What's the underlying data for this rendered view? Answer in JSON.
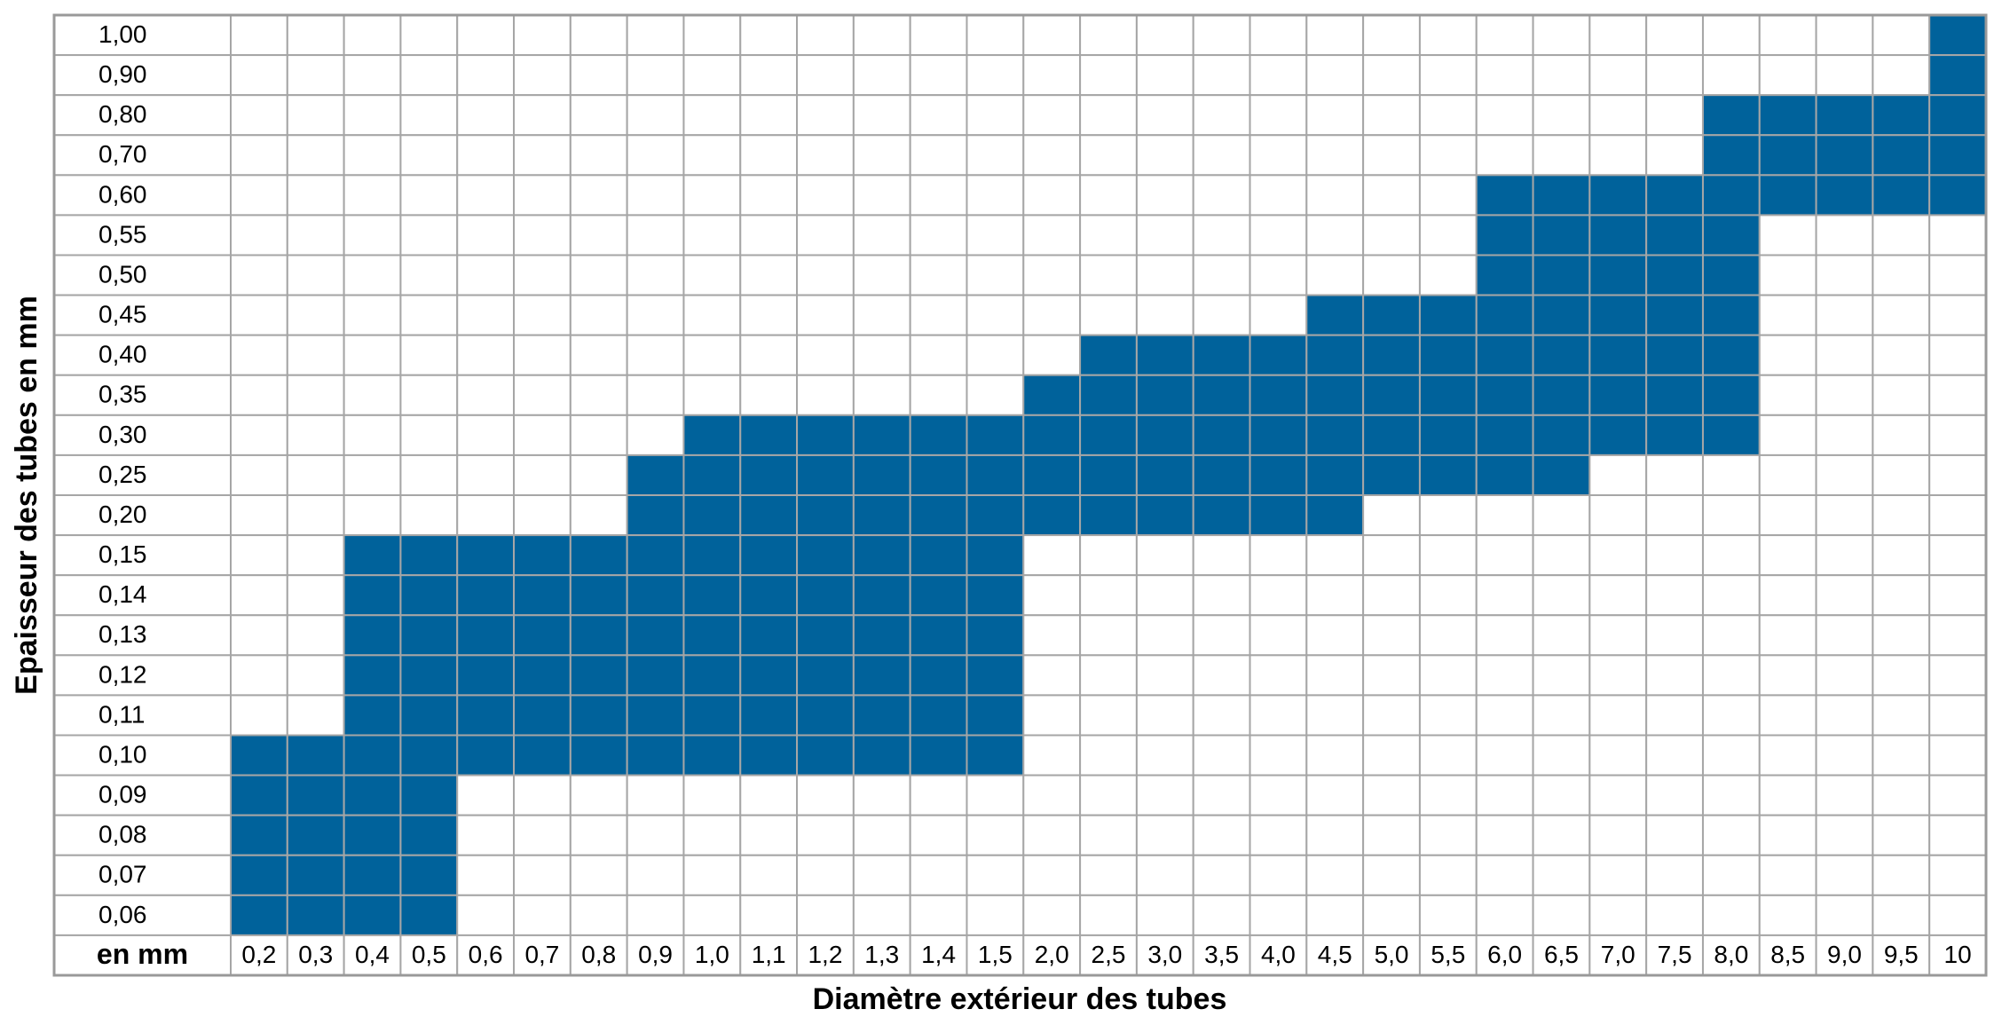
{
  "y_axis_title": "Epaisseur des tubes en mm",
  "x_axis_title": "Diamètre extérieur des tubes",
  "corner_label": "en mm",
  "columns": [
    "0,2",
    "0,3",
    "0,4",
    "0,5",
    "0,6",
    "0,7",
    "0,8",
    "0,9",
    "1,0",
    "1,1",
    "1,2",
    "1,3",
    "1,4",
    "1,5",
    "2,0",
    "2,5",
    "3,0",
    "3,5",
    "4,0",
    "4,5",
    "5,0",
    "5,5",
    "6,0",
    "6,5",
    "7,0",
    "7,5",
    "8,0",
    "8,5",
    "9,0",
    "9,5",
    "10"
  ],
  "rows": [
    {
      "label": "1,00",
      "cells": [
        0,
        0,
        0,
        0,
        0,
        0,
        0,
        0,
        0,
        0,
        0,
        0,
        0,
        0,
        0,
        0,
        0,
        0,
        0,
        0,
        0,
        0,
        0,
        0,
        0,
        0,
        0,
        0,
        0,
        0,
        1
      ]
    },
    {
      "label": "0,90",
      "cells": [
        0,
        0,
        0,
        0,
        0,
        0,
        0,
        0,
        0,
        0,
        0,
        0,
        0,
        0,
        0,
        0,
        0,
        0,
        0,
        0,
        0,
        0,
        0,
        0,
        0,
        0,
        0,
        0,
        0,
        0,
        1
      ]
    },
    {
      "label": "0,80",
      "cells": [
        0,
        0,
        0,
        0,
        0,
        0,
        0,
        0,
        0,
        0,
        0,
        0,
        0,
        0,
        0,
        0,
        0,
        0,
        0,
        0,
        0,
        0,
        0,
        0,
        0,
        0,
        1,
        1,
        1,
        1,
        1
      ]
    },
    {
      "label": "0,70",
      "cells": [
        0,
        0,
        0,
        0,
        0,
        0,
        0,
        0,
        0,
        0,
        0,
        0,
        0,
        0,
        0,
        0,
        0,
        0,
        0,
        0,
        0,
        0,
        0,
        0,
        0,
        0,
        1,
        1,
        1,
        1,
        1
      ]
    },
    {
      "label": "0,60",
      "cells": [
        0,
        0,
        0,
        0,
        0,
        0,
        0,
        0,
        0,
        0,
        0,
        0,
        0,
        0,
        0,
        0,
        0,
        0,
        0,
        0,
        0,
        0,
        1,
        1,
        1,
        1,
        1,
        1,
        1,
        1,
        1
      ]
    },
    {
      "label": "0,55",
      "cells": [
        0,
        0,
        0,
        0,
        0,
        0,
        0,
        0,
        0,
        0,
        0,
        0,
        0,
        0,
        0,
        0,
        0,
        0,
        0,
        0,
        0,
        0,
        1,
        1,
        1,
        1,
        1,
        0,
        0,
        0,
        0
      ]
    },
    {
      "label": "0,50",
      "cells": [
        0,
        0,
        0,
        0,
        0,
        0,
        0,
        0,
        0,
        0,
        0,
        0,
        0,
        0,
        0,
        0,
        0,
        0,
        0,
        0,
        0,
        0,
        1,
        1,
        1,
        1,
        1,
        0,
        0,
        0,
        0
      ]
    },
    {
      "label": "0,45",
      "cells": [
        0,
        0,
        0,
        0,
        0,
        0,
        0,
        0,
        0,
        0,
        0,
        0,
        0,
        0,
        0,
        0,
        0,
        0,
        0,
        1,
        1,
        1,
        1,
        1,
        1,
        1,
        1,
        0,
        0,
        0,
        0
      ]
    },
    {
      "label": "0,40",
      "cells": [
        0,
        0,
        0,
        0,
        0,
        0,
        0,
        0,
        0,
        0,
        0,
        0,
        0,
        0,
        0,
        1,
        1,
        1,
        1,
        1,
        1,
        1,
        1,
        1,
        1,
        1,
        1,
        0,
        0,
        0,
        0
      ]
    },
    {
      "label": "0,35",
      "cells": [
        0,
        0,
        0,
        0,
        0,
        0,
        0,
        0,
        0,
        0,
        0,
        0,
        0,
        0,
        1,
        1,
        1,
        1,
        1,
        1,
        1,
        1,
        1,
        1,
        1,
        1,
        1,
        0,
        0,
        0,
        0
      ]
    },
    {
      "label": "0,30",
      "cells": [
        0,
        0,
        0,
        0,
        0,
        0,
        0,
        0,
        1,
        1,
        1,
        1,
        1,
        1,
        1,
        1,
        1,
        1,
        1,
        1,
        1,
        1,
        1,
        1,
        1,
        1,
        1,
        0,
        0,
        0,
        0
      ]
    },
    {
      "label": "0,25",
      "cells": [
        0,
        0,
        0,
        0,
        0,
        0,
        0,
        1,
        1,
        1,
        1,
        1,
        1,
        1,
        1,
        1,
        1,
        1,
        1,
        1,
        1,
        1,
        1,
        1,
        0,
        0,
        0,
        0,
        0,
        0,
        0
      ]
    },
    {
      "label": "0,20",
      "cells": [
        0,
        0,
        0,
        0,
        0,
        0,
        0,
        1,
        1,
        1,
        1,
        1,
        1,
        1,
        1,
        1,
        1,
        1,
        1,
        1,
        0,
        0,
        0,
        0,
        0,
        0,
        0,
        0,
        0,
        0,
        0
      ]
    },
    {
      "label": "0,15",
      "cells": [
        0,
        0,
        1,
        1,
        1,
        1,
        1,
        1,
        1,
        1,
        1,
        1,
        1,
        1,
        0,
        0,
        0,
        0,
        0,
        0,
        0,
        0,
        0,
        0,
        0,
        0,
        0,
        0,
        0,
        0,
        0
      ]
    },
    {
      "label": "0,14",
      "cells": [
        0,
        0,
        1,
        1,
        1,
        1,
        1,
        1,
        1,
        1,
        1,
        1,
        1,
        1,
        0,
        0,
        0,
        0,
        0,
        0,
        0,
        0,
        0,
        0,
        0,
        0,
        0,
        0,
        0,
        0,
        0
      ]
    },
    {
      "label": "0,13",
      "cells": [
        0,
        0,
        1,
        1,
        1,
        1,
        1,
        1,
        1,
        1,
        1,
        1,
        1,
        1,
        0,
        0,
        0,
        0,
        0,
        0,
        0,
        0,
        0,
        0,
        0,
        0,
        0,
        0,
        0,
        0,
        0
      ]
    },
    {
      "label": "0,12",
      "cells": [
        0,
        0,
        1,
        1,
        1,
        1,
        1,
        1,
        1,
        1,
        1,
        1,
        1,
        1,
        0,
        0,
        0,
        0,
        0,
        0,
        0,
        0,
        0,
        0,
        0,
        0,
        0,
        0,
        0,
        0,
        0
      ]
    },
    {
      "label": "0,11",
      "cells": [
        0,
        0,
        1,
        1,
        1,
        1,
        1,
        1,
        1,
        1,
        1,
        1,
        1,
        1,
        0,
        0,
        0,
        0,
        0,
        0,
        0,
        0,
        0,
        0,
        0,
        0,
        0,
        0,
        0,
        0,
        0
      ]
    },
    {
      "label": "0,10",
      "cells": [
        1,
        1,
        1,
        1,
        1,
        1,
        1,
        1,
        1,
        1,
        1,
        1,
        1,
        1,
        0,
        0,
        0,
        0,
        0,
        0,
        0,
        0,
        0,
        0,
        0,
        0,
        0,
        0,
        0,
        0,
        0
      ]
    },
    {
      "label": "0,09",
      "cells": [
        1,
        1,
        1,
        1,
        0,
        0,
        0,
        0,
        0,
        0,
        0,
        0,
        0,
        0,
        0,
        0,
        0,
        0,
        0,
        0,
        0,
        0,
        0,
        0,
        0,
        0,
        0,
        0,
        0,
        0,
        0
      ]
    },
    {
      "label": "0,08",
      "cells": [
        1,
        1,
        1,
        1,
        0,
        0,
        0,
        0,
        0,
        0,
        0,
        0,
        0,
        0,
        0,
        0,
        0,
        0,
        0,
        0,
        0,
        0,
        0,
        0,
        0,
        0,
        0,
        0,
        0,
        0,
        0
      ]
    },
    {
      "label": "0,07",
      "cells": [
        1,
        1,
        1,
        1,
        0,
        0,
        0,
        0,
        0,
        0,
        0,
        0,
        0,
        0,
        0,
        0,
        0,
        0,
        0,
        0,
        0,
        0,
        0,
        0,
        0,
        0,
        0,
        0,
        0,
        0,
        0
      ]
    },
    {
      "label": "0,06",
      "cells": [
        1,
        1,
        1,
        1,
        0,
        0,
        0,
        0,
        0,
        0,
        0,
        0,
        0,
        0,
        0,
        0,
        0,
        0,
        0,
        0,
        0,
        0,
        0,
        0,
        0,
        0,
        0,
        0,
        0,
        0,
        0
      ]
    }
  ]
}
